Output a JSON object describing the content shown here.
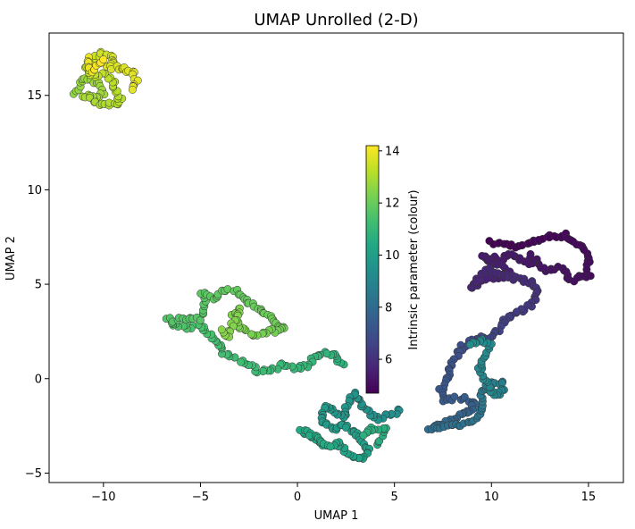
{
  "chart_data": {
    "type": "scatter",
    "title": "UMAP Unrolled (2-D)",
    "xlabel": "UMAP 1",
    "ylabel": "UMAP 2",
    "xlim": [
      -12.8,
      16.8
    ],
    "ylim": [
      -5.5,
      18.3
    ],
    "xticks": [
      -10,
      -5,
      0,
      5,
      10,
      15
    ],
    "yticks": [
      -5,
      0,
      5,
      10,
      15
    ],
    "grid": false,
    "colormap": "viridis",
    "colorbar": {
      "label": "Intrinsic parameter (colour)",
      "range": [
        4.7,
        14.2
      ],
      "ticks": [
        6,
        8,
        10,
        12,
        14
      ]
    },
    "marker_edge_color": "#333333",
    "path": [
      [
        10.0,
        7.2,
        4.7
      ],
      [
        11.5,
        7.0,
        4.75
      ],
      [
        12.8,
        7.5,
        4.8
      ],
      [
        13.8,
        7.6,
        4.85
      ],
      [
        14.7,
        6.9,
        4.9
      ],
      [
        15.0,
        6.4,
        4.95
      ],
      [
        15.0,
        5.5,
        5.0
      ],
      [
        14.2,
        5.2,
        5.05
      ],
      [
        13.6,
        5.9,
        5.1
      ],
      [
        12.9,
        5.6,
        5.15
      ],
      [
        12.1,
        6.5,
        5.2
      ],
      [
        12.0,
        6.0,
        5.25
      ],
      [
        11.0,
        6.6,
        5.3
      ],
      [
        10.4,
        6.3,
        5.35
      ],
      [
        9.5,
        6.5,
        5.4
      ],
      [
        10.5,
        5.9,
        5.5
      ],
      [
        11.0,
        5.5,
        5.55
      ],
      [
        10.0,
        5.3,
        5.6
      ],
      [
        9.3,
        5.2,
        5.65
      ],
      [
        9.0,
        4.8,
        5.7
      ],
      [
        9.8,
        5.8,
        5.75
      ],
      [
        10.6,
        5.4,
        5.8
      ],
      [
        11.3,
        5.3,
        5.85
      ],
      [
        12.0,
        5.1,
        5.95
      ],
      [
        12.3,
        4.7,
        6.05
      ],
      [
        12.2,
        4.1,
        6.15
      ],
      [
        11.8,
        3.7,
        6.25
      ],
      [
        11.2,
        3.5,
        6.35
      ],
      [
        10.7,
        3.2,
        6.45
      ],
      [
        10.4,
        2.6,
        6.55
      ],
      [
        10.0,
        2.2,
        6.65
      ],
      [
        9.4,
        2.2,
        6.75
      ],
      [
        8.9,
        2.0,
        6.85
      ],
      [
        8.4,
        1.6,
        6.95
      ],
      [
        8.0,
        0.9,
        7.05
      ],
      [
        7.8,
        0.2,
        7.15
      ],
      [
        7.4,
        -0.6,
        7.25
      ],
      [
        7.6,
        -1.1,
        7.35
      ],
      [
        8.5,
        -1.0,
        7.45
      ],
      [
        9.2,
        -1.3,
        7.55
      ],
      [
        8.8,
        -1.8,
        7.65
      ],
      [
        8.3,
        -2.0,
        7.75
      ],
      [
        7.8,
        -2.2,
        7.85
      ],
      [
        7.2,
        -2.5,
        7.95
      ],
      [
        6.8,
        -2.7,
        8.05
      ],
      [
        7.6,
        -2.5,
        8.15
      ],
      [
        8.6,
        -2.4,
        8.25
      ],
      [
        9.4,
        -2.0,
        8.35
      ],
      [
        9.6,
        -1.5,
        8.45
      ],
      [
        9.4,
        -0.8,
        8.55
      ],
      [
        9.8,
        -0.3,
        8.65
      ],
      [
        10.5,
        -0.2,
        8.75
      ],
      [
        10.6,
        -0.6,
        8.85
      ],
      [
        10.2,
        -0.9,
        8.95
      ],
      [
        9.8,
        -0.4,
        9.0
      ],
      [
        9.4,
        0.6,
        9.05
      ],
      [
        9.7,
        1.2,
        9.1
      ],
      [
        9.9,
        1.8,
        9.15
      ],
      [
        9.5,
        2.1,
        9.2
      ],
      [
        8.9,
        1.8,
        9.25
      ],
      [
        5.3,
        -1.7,
        9.35
      ],
      [
        4.6,
        -1.9,
        9.4
      ],
      [
        4.1,
        -2.1,
        9.45
      ],
      [
        3.6,
        -1.8,
        9.5
      ],
      [
        3.2,
        -1.2,
        9.55
      ],
      [
        2.9,
        -0.7,
        9.6
      ],
      [
        2.6,
        -1.4,
        9.65
      ],
      [
        2.3,
        -2.1,
        9.7
      ],
      [
        1.9,
        -1.6,
        9.75
      ],
      [
        1.4,
        -1.5,
        9.8
      ],
      [
        1.2,
        -2.3,
        9.85
      ],
      [
        1.8,
        -2.7,
        9.9
      ],
      [
        2.4,
        -2.4,
        9.95
      ],
      [
        2.9,
        -2.9,
        10.0
      ],
      [
        3.4,
        -3.3,
        10.05
      ],
      [
        3.7,
        -3.9,
        10.1
      ],
      [
        3.2,
        -4.3,
        10.15
      ],
      [
        2.6,
        -3.9,
        10.2
      ],
      [
        2.1,
        -3.4,
        10.25
      ],
      [
        1.5,
        -3.5,
        10.3
      ],
      [
        0.8,
        -3.2,
        10.35
      ],
      [
        0.2,
        -2.7,
        10.4
      ],
      [
        0.6,
        -2.9,
        10.45
      ],
      [
        1.7,
        -3.6,
        10.5
      ],
      [
        4.2,
        -3.5,
        10.55
      ],
      [
        4.5,
        -2.6,
        10.6
      ],
      [
        3.9,
        -2.6,
        10.65
      ],
      [
        3.4,
        -3.0,
        10.7
      ],
      [
        2.3,
        0.7,
        10.75
      ],
      [
        1.9,
        1.3,
        10.8
      ],
      [
        1.4,
        1.4,
        10.85
      ],
      [
        0.8,
        1.0,
        10.9
      ],
      [
        0.5,
        0.7,
        10.95
      ],
      [
        -0.2,
        0.6,
        11.0
      ],
      [
        -0.8,
        0.7,
        11.05
      ],
      [
        -1.4,
        0.5,
        11.1
      ],
      [
        -2.0,
        0.4,
        11.15
      ],
      [
        -2.6,
        0.8,
        11.2
      ],
      [
        -3.3,
        1.1,
        11.25
      ],
      [
        -3.8,
        1.4,
        11.3
      ],
      [
        -4.2,
        1.9,
        11.35
      ],
      [
        -4.6,
        2.4,
        11.4
      ],
      [
        -5.0,
        2.8,
        11.45
      ],
      [
        -5.6,
        2.7,
        11.5
      ],
      [
        -6.2,
        2.8,
        11.55
      ],
      [
        -6.7,
        3.1,
        11.6
      ],
      [
        -5.0,
        3.2,
        11.65
      ],
      [
        -4.8,
        3.9,
        11.7
      ],
      [
        -4.9,
        4.5,
        11.75
      ],
      [
        -4.3,
        4.3,
        11.8
      ],
      [
        -3.8,
        4.7,
        11.85
      ],
      [
        -3.2,
        4.6,
        11.9
      ],
      [
        -2.7,
        4.2,
        11.95
      ],
      [
        -2.1,
        3.7,
        12.0
      ],
      [
        -1.5,
        3.4,
        12.05
      ],
      [
        -1.1,
        2.9,
        12.1
      ],
      [
        -0.6,
        2.6,
        12.15
      ],
      [
        -1.6,
        2.5,
        12.2
      ],
      [
        -2.2,
        2.3,
        12.25
      ],
      [
        -2.9,
        2.6,
        12.3
      ],
      [
        -3.3,
        3.3,
        12.35
      ],
      [
        -3.0,
        3.7,
        12.4
      ],
      [
        -3.6,
        2.2,
        12.45
      ],
      [
        -3.9,
        2.6,
        12.5
      ],
      [
        -11.5,
        15.1,
        12.6
      ],
      [
        -11.2,
        15.6,
        12.7
      ],
      [
        -10.8,
        15.9,
        12.75
      ],
      [
        -10.3,
        15.6,
        12.8
      ],
      [
        -10.0,
        15.1,
        12.85
      ],
      [
        -10.5,
        14.8,
        12.9
      ],
      [
        -11.0,
        15.0,
        12.95
      ],
      [
        -10.2,
        14.6,
        13.0
      ],
      [
        -9.6,
        14.5,
        13.05
      ],
      [
        -9.1,
        14.6,
        13.1
      ],
      [
        -9.3,
        15.1,
        13.15
      ],
      [
        -9.5,
        15.7,
        13.2
      ],
      [
        -9.9,
        16.1,
        13.25
      ],
      [
        -10.6,
        16.0,
        13.3
      ],
      [
        -10.9,
        16.5,
        13.35
      ],
      [
        -10.5,
        16.8,
        13.4
      ],
      [
        -10.2,
        17.2,
        13.5
      ],
      [
        -9.8,
        17.1,
        13.55
      ],
      [
        -9.4,
        16.8,
        13.6
      ],
      [
        -9.8,
        16.5,
        13.65
      ],
      [
        -9.0,
        16.4,
        13.7
      ],
      [
        -8.5,
        16.3,
        13.75
      ],
      [
        -8.3,
        15.8,
        13.8
      ],
      [
        -8.5,
        15.3,
        13.85
      ],
      [
        -10.8,
        17.0,
        13.9
      ],
      [
        -10.6,
        16.3,
        14.0
      ],
      [
        -10.2,
        16.6,
        14.1
      ],
      [
        -10.0,
        16.9,
        14.2
      ]
    ]
  }
}
